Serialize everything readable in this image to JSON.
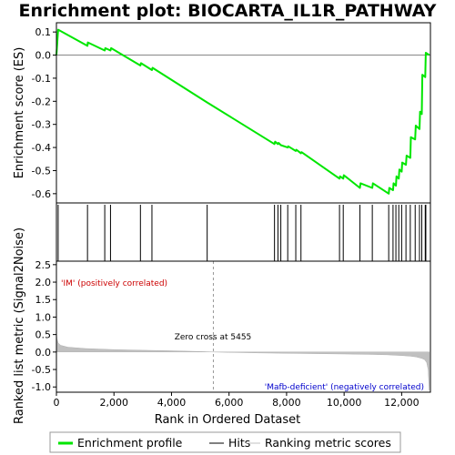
{
  "chart_data": {
    "type": "line",
    "title": "Enrichment plot: BIOCARTA_IL1R_PATHWAY",
    "n_genes": 13000,
    "es_panel": {
      "ylabel": "Enrichment score (ES)",
      "ylim": [
        -0.64,
        0.14
      ],
      "yticks": [
        0.1,
        0.0,
        -0.1,
        -0.2,
        -0.3,
        -0.4,
        -0.5,
        -0.6
      ],
      "ytick_labels": [
        "0.1",
        "0.0",
        "-0.1",
        "-0.2",
        "-0.3",
        "-0.4",
        "-0.5",
        "-0.6"
      ],
      "line_color": "#00e600",
      "series": [
        {
          "name": "Enrichment profile",
          "x": [
            0,
            60,
            1080,
            1090,
            1680,
            1700,
            1880,
            1900,
            2920,
            2940,
            3320,
            3340,
            5240,
            7580,
            7600,
            7700,
            7720,
            7800,
            8040,
            8060,
            8320,
            8340,
            8500,
            8520,
            9840,
            9860,
            9970,
            9990,
            10550,
            10570,
            10980,
            11000,
            11550,
            11570,
            11700,
            11720,
            11800,
            11820,
            11900,
            11920,
            12000,
            12020,
            12150,
            12170,
            12300,
            12320,
            12470,
            12490,
            12620,
            12640,
            12700,
            12720,
            12820,
            12840,
            12960
          ],
          "y": [
            0.0,
            0.11,
            0.04,
            0.055,
            0.02,
            0.03,
            0.02,
            0.03,
            -0.045,
            -0.035,
            -0.065,
            -0.055,
            -0.205,
            -0.385,
            -0.375,
            -0.385,
            -0.38,
            -0.39,
            -0.4,
            -0.395,
            -0.415,
            -0.41,
            -0.425,
            -0.42,
            -0.535,
            -0.525,
            -0.535,
            -0.52,
            -0.575,
            -0.555,
            -0.575,
            -0.555,
            -0.6,
            -0.575,
            -0.585,
            -0.555,
            -0.565,
            -0.525,
            -0.535,
            -0.495,
            -0.505,
            -0.465,
            -0.475,
            -0.435,
            -0.445,
            -0.355,
            -0.365,
            -0.305,
            -0.32,
            -0.245,
            -0.255,
            -0.085,
            -0.095,
            0.01,
            0.0
          ]
        }
      ]
    },
    "hits_panel": {
      "hit_positions": [
        60,
        1080,
        1680,
        1880,
        2920,
        3320,
        5240,
        7580,
        7700,
        7800,
        8040,
        8320,
        8500,
        9840,
        9970,
        10550,
        10980,
        11550,
        11700,
        11800,
        11900,
        12000,
        12150,
        12300,
        12470,
        12620,
        12700,
        12820,
        12840
      ]
    },
    "heatmap_bar": {
      "colors_from_left": [
        "#ff5a5a",
        "#ff6e6e",
        "#ff8a8a",
        "#ffaaaa",
        "#ffc4e6",
        "#ddd0ff",
        "#b8b8ff",
        "#8888ff",
        "#5a5aff",
        "#3a3aee"
      ]
    },
    "metric_panel": {
      "ylabel": "Ranked list metric (Signal2Noise)",
      "ylim": [
        -1.15,
        2.6
      ],
      "yticks": [
        2.5,
        2.0,
        1.5,
        1.0,
        0.5,
        0.0,
        -0.5,
        -1.0
      ],
      "ytick_labels": [
        "2.5",
        "2.0",
        "1.5",
        "1.0",
        "0.5",
        "0.0",
        "-0.5",
        "-1.0"
      ],
      "fill_color": "#c0c0c0",
      "curve_x": [
        0,
        20,
        60,
        150,
        400,
        1000,
        2000,
        3000,
        4000,
        5000,
        5455,
        6000,
        7000,
        8000,
        9000,
        10000,
        11000,
        11500,
        12000,
        12300,
        12500,
        12700,
        12800,
        12870,
        12920,
        12960
      ],
      "curve_y": [
        0.62,
        0.38,
        0.26,
        0.19,
        0.14,
        0.1,
        0.07,
        0.05,
        0.035,
        0.015,
        0.0,
        -0.01,
        -0.025,
        -0.035,
        -0.045,
        -0.055,
        -0.07,
        -0.08,
        -0.1,
        -0.12,
        -0.14,
        -0.18,
        -0.22,
        -0.3,
        -0.5,
        -1.1
      ],
      "zero_cross": 5455,
      "zero_cross_label": "Zero cross at 5455",
      "pos_label": "'IM' (positively correlated)",
      "neg_label": "'Mafb-deficient' (negatively correlated)",
      "pos_label_color": "#cc0000",
      "neg_label_color": "#0000cc"
    },
    "xaxis": {
      "xlabel": "Rank in Ordered Dataset",
      "xlim": [
        0,
        13000
      ],
      "xticks": [
        0,
        2000,
        4000,
        6000,
        8000,
        10000,
        12000
      ],
      "xtick_labels": [
        "0",
        "2,000",
        "4,000",
        "6,000",
        "8,000",
        "10,000",
        "12,000"
      ]
    },
    "legend": {
      "placement": "bottom",
      "items": [
        {
          "name": "Enrichment profile",
          "color": "#00e600",
          "kind": "thick-line"
        },
        {
          "name": "Hits",
          "color": "#000000",
          "kind": "line"
        },
        {
          "name": "Ranking metric scores",
          "color": "#c0c0c0",
          "kind": "line"
        }
      ]
    }
  }
}
